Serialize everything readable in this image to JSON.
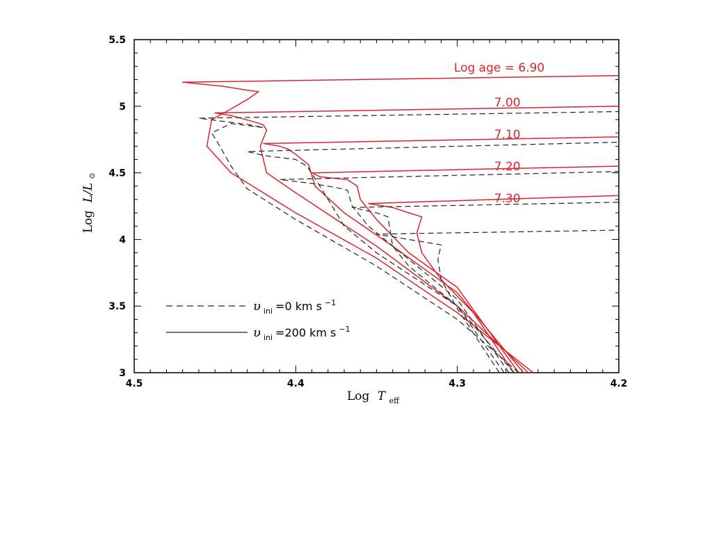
{
  "chart_data": {
    "type": "line",
    "xlabel_main": "Log",
    "xlabel_symbol": "T",
    "xlabel_sub": "eff",
    "ylabel_main": "Log",
    "ylabel_symbol": "L/L",
    "ylabel_sun": "⊙",
    "xlim": [
      4.5,
      4.2
    ],
    "ylim": [
      3,
      5.5
    ],
    "x_ticks": [
      {
        "value": 4.5,
        "label": "4.5"
      },
      {
        "value": 4.4,
        "label": "4.4"
      },
      {
        "value": 4.3,
        "label": "4.3"
      },
      {
        "value": 4.2,
        "label": "4.2"
      }
    ],
    "y_ticks": [
      {
        "value": 3,
        "label": "3"
      },
      {
        "value": 3.5,
        "label": "3.5"
      },
      {
        "value": 4,
        "label": "4"
      },
      {
        "value": 4.5,
        "label": "4.5"
      },
      {
        "value": 5,
        "label": "5"
      },
      {
        "value": 5.5,
        "label": "5.5"
      }
    ],
    "colors": {
      "rotating": "#d8252b",
      "nonrotating": "#222222"
    },
    "legend": [
      {
        "style": "dashed",
        "symbol": "υ",
        "sub": "ini",
        "text": "=0  km  s",
        "exp": "−1"
      },
      {
        "style": "solid",
        "symbol": "υ",
        "sub": "ini",
        "text": "=200  km  s",
        "exp": "−1"
      }
    ],
    "annotations": [
      {
        "text": "Log  age  =  6.90",
        "x": 4.274,
        "y": 5.29
      },
      {
        "text": "7.00",
        "x": 4.269,
        "y": 5.03
      },
      {
        "text": "7.10",
        "x": 4.269,
        "y": 4.79
      },
      {
        "text": "7.20",
        "x": 4.269,
        "y": 4.55
      },
      {
        "text": "7.30",
        "x": 4.269,
        "y": 4.31
      }
    ],
    "series": [
      {
        "style": "solid",
        "points": [
          [
            4.253,
            3.0
          ],
          [
            4.3,
            3.45
          ],
          [
            4.35,
            3.86
          ],
          [
            4.4,
            4.2
          ],
          [
            4.44,
            4.5
          ],
          [
            4.455,
            4.7
          ],
          [
            4.452,
            4.9
          ],
          [
            4.44,
            4.98
          ],
          [
            4.43,
            5.05
          ],
          [
            4.423,
            5.11
          ],
          [
            4.43,
            5.12
          ],
          [
            4.445,
            5.15
          ],
          [
            4.47,
            5.18
          ],
          [
            4.2,
            5.23
          ]
        ]
      },
      {
        "style": "solid",
        "points": [
          [
            4.256,
            3.0
          ],
          [
            4.3,
            3.5
          ],
          [
            4.35,
            3.95
          ],
          [
            4.4,
            4.35
          ],
          [
            4.418,
            4.5
          ],
          [
            4.422,
            4.7
          ],
          [
            4.418,
            4.82
          ],
          [
            4.42,
            4.86
          ],
          [
            4.425,
            4.88
          ],
          [
            4.44,
            4.93
          ],
          [
            4.45,
            4.95
          ],
          [
            4.2,
            5.0
          ]
        ]
      },
      {
        "style": "solid",
        "points": [
          [
            4.259,
            3.0
          ],
          [
            4.3,
            3.6
          ],
          [
            4.34,
            3.95
          ],
          [
            4.37,
            4.2
          ],
          [
            4.388,
            4.4
          ],
          [
            4.392,
            4.56
          ],
          [
            4.4,
            4.64
          ],
          [
            4.405,
            4.68
          ],
          [
            4.41,
            4.7
          ],
          [
            4.42,
            4.72
          ],
          [
            4.2,
            4.77
          ]
        ]
      },
      {
        "style": "solid",
        "points": [
          [
            4.262,
            3.0
          ],
          [
            4.3,
            3.64
          ],
          [
            4.33,
            3.9
          ],
          [
            4.35,
            4.15
          ],
          [
            4.36,
            4.3
          ],
          [
            4.362,
            4.4
          ],
          [
            4.368,
            4.45
          ],
          [
            4.385,
            4.47
          ],
          [
            4.39,
            4.5
          ],
          [
            4.2,
            4.55
          ]
        ]
      },
      {
        "style": "solid",
        "points": [
          [
            4.265,
            3.0
          ],
          [
            4.29,
            3.45
          ],
          [
            4.31,
            3.7
          ],
          [
            4.322,
            3.9
          ],
          [
            4.325,
            4.05
          ],
          [
            4.322,
            4.17
          ],
          [
            4.33,
            4.2
          ],
          [
            4.34,
            4.24
          ],
          [
            4.355,
            4.27
          ],
          [
            4.2,
            4.33
          ]
        ]
      },
      {
        "style": "dashed",
        "points": [
          [
            4.262,
            3.0
          ],
          [
            4.3,
            3.4
          ],
          [
            4.35,
            3.8
          ],
          [
            4.4,
            4.15
          ],
          [
            4.43,
            4.38
          ],
          [
            4.44,
            4.55
          ],
          [
            4.447,
            4.7
          ],
          [
            4.452,
            4.8
          ],
          [
            4.44,
            4.87
          ],
          [
            4.42,
            4.84
          ],
          [
            4.428,
            4.86
          ],
          [
            4.46,
            4.91
          ],
          [
            4.2,
            4.96
          ]
        ]
      },
      {
        "style": "dashed",
        "points": [
          [
            4.265,
            3.0
          ],
          [
            4.3,
            3.5
          ],
          [
            4.35,
            3.9
          ],
          [
            4.37,
            4.1
          ],
          [
            4.38,
            4.3
          ],
          [
            4.385,
            4.4
          ],
          [
            4.393,
            4.55
          ],
          [
            4.4,
            4.6
          ],
          [
            4.42,
            4.63
          ],
          [
            4.43,
            4.66
          ],
          [
            4.2,
            4.73
          ]
        ]
      },
      {
        "style": "dashed",
        "points": [
          [
            4.268,
            3.0
          ],
          [
            4.3,
            3.55
          ],
          [
            4.33,
            3.85
          ],
          [
            4.355,
            4.1
          ],
          [
            4.365,
            4.25
          ],
          [
            4.368,
            4.37
          ],
          [
            4.375,
            4.39
          ],
          [
            4.39,
            4.42
          ],
          [
            4.41,
            4.45
          ],
          [
            4.2,
            4.51
          ]
        ]
      },
      {
        "style": "dashed",
        "points": [
          [
            4.271,
            3.0
          ],
          [
            4.3,
            3.5
          ],
          [
            4.33,
            3.8
          ],
          [
            4.34,
            3.95
          ],
          [
            4.342,
            4.1
          ],
          [
            4.343,
            4.17
          ],
          [
            4.35,
            4.2
          ],
          [
            4.365,
            4.24
          ],
          [
            4.2,
            4.28
          ]
        ]
      },
      {
        "style": "dashed",
        "points": [
          [
            4.274,
            3.0
          ],
          [
            4.3,
            3.48
          ],
          [
            4.31,
            3.7
          ],
          [
            4.312,
            3.85
          ],
          [
            4.31,
            3.96
          ],
          [
            4.33,
            4.0
          ],
          [
            4.35,
            4.04
          ],
          [
            4.2,
            4.07
          ]
        ]
      }
    ]
  }
}
